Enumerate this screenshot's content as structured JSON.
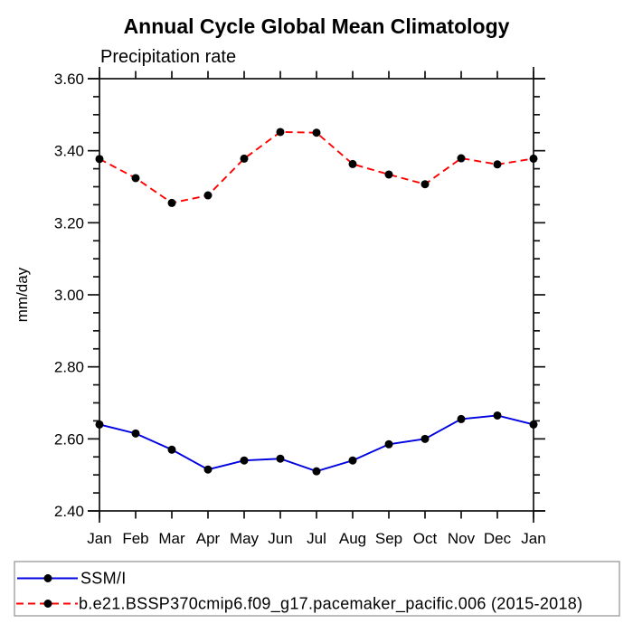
{
  "title": "Annual Cycle Global Mean Climatology",
  "subtitle": "Precipitation rate",
  "ylabel": "mm/day",
  "colors": {
    "obs_line": "#0000e0",
    "model_line": "#ff0000",
    "marker": "#000000",
    "axis": "#111111",
    "legend_border": "#999999"
  },
  "legend": {
    "entries": [
      {
        "label": "SSM/I",
        "color": "#0000e0",
        "style": "solid"
      },
      {
        "label": "b.e21.BSSP370cmip6.f09_g17.pacemaker_pacific.006 (2015-2018)",
        "color": "#ff0000",
        "style": "dashed"
      }
    ]
  },
  "chart_data": {
    "type": "line",
    "title": "Annual Cycle Global Mean Climatology",
    "subtitle": "Precipitation rate",
    "xlabel": "",
    "ylabel": "mm/day",
    "categories": [
      "Jan",
      "Feb",
      "Mar",
      "Apr",
      "May",
      "Jun",
      "Jul",
      "Aug",
      "Sep",
      "Oct",
      "Nov",
      "Dec",
      "Jan"
    ],
    "ylim": [
      2.4,
      3.6
    ],
    "y_major_ticks": [
      "3.60",
      "3.40",
      "3.20",
      "3.00",
      "2.80",
      "2.60",
      "2.40"
    ],
    "y_minor_interval": 0.05,
    "grid": false,
    "legend_position": "bottom",
    "series": [
      {
        "name": "SSM/I",
        "color": "#0000e0",
        "line_style": "solid",
        "marker": "filled-circle",
        "marker_color": "#000000",
        "values": [
          2.64,
          2.615,
          2.57,
          2.515,
          2.54,
          2.545,
          2.51,
          2.54,
          2.585,
          2.6,
          2.655,
          2.665,
          2.64
        ]
      },
      {
        "name": "b.e21.BSSP370cmip6.f09_g17.pacemaker_pacific.006 (2015-2018)",
        "color": "#ff0000",
        "line_style": "dashed",
        "marker": "filled-circle",
        "marker_color": "#000000",
        "values": [
          3.377,
          3.324,
          3.255,
          3.276,
          3.378,
          3.452,
          3.45,
          3.363,
          3.334,
          3.307,
          3.379,
          3.362,
          3.378
        ]
      }
    ]
  }
}
